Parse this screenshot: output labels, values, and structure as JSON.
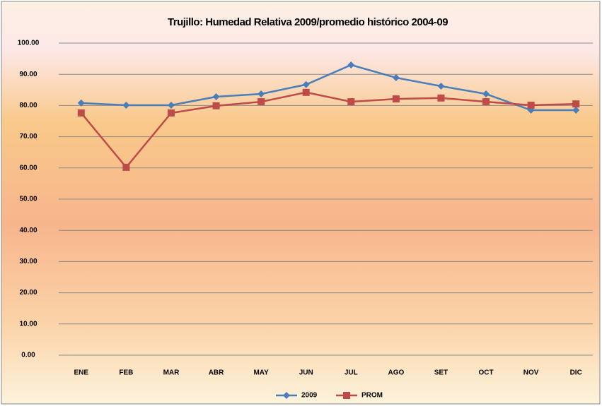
{
  "chart_data": {
    "type": "line",
    "title": "Trujillo: Humedad Relativa 2009/promedio histórico 2004-09",
    "categories": [
      "ENE",
      "FEB",
      "MAR",
      "ABR",
      "MAY",
      "JUN",
      "JUL",
      "AGO",
      "SET",
      "OCT",
      "NOV",
      "DIC"
    ],
    "series": [
      {
        "name": "2009",
        "color": "#4a7ebb",
        "marker": "diamond",
        "values": [
          80.8,
          80.1,
          80.1,
          82.8,
          83.7,
          86.7,
          93.0,
          88.9,
          86.2,
          83.7,
          78.5,
          78.5
        ]
      },
      {
        "name": "PROM",
        "color": "#be4b48",
        "marker": "square",
        "values": [
          77.6,
          60.2,
          77.6,
          79.9,
          81.2,
          84.2,
          81.2,
          82.1,
          82.4,
          81.2,
          80.1,
          80.5
        ]
      }
    ],
    "ylim": [
      0,
      100
    ],
    "yticks": [
      {
        "value": 0,
        "label": "0.00"
      },
      {
        "value": 10,
        "label": "10.00"
      },
      {
        "value": 20,
        "label": "20.00"
      },
      {
        "value": 30,
        "label": "30.00"
      },
      {
        "value": 40,
        "label": "40.00"
      },
      {
        "value": 50,
        "label": "50.00"
      },
      {
        "value": 60,
        "label": "60.00"
      },
      {
        "value": 70,
        "label": "70.00"
      },
      {
        "value": 80,
        "label": "80.00"
      },
      {
        "value": 90,
        "label": "90.00"
      },
      {
        "value": 100,
        "label": "100.00"
      }
    ],
    "grid": true,
    "legend": "bottom"
  }
}
